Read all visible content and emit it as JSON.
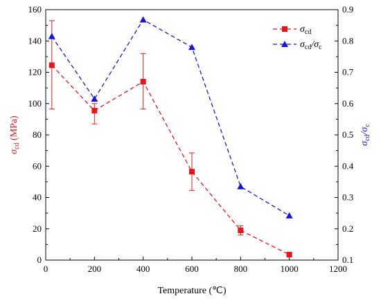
{
  "chart_data": {
    "type": "line",
    "x": [
      25,
      200,
      400,
      600,
      800,
      1000
    ],
    "xlabel": "Temperature (℃)",
    "xlim": [
      0,
      1200
    ],
    "xticks": [
      0,
      200,
      400,
      600,
      800,
      1000,
      1200
    ],
    "grid": false,
    "legend_position": "top-right",
    "left_axis": {
      "label_main": "σ",
      "label_sub": "cd",
      "label_unit": " (MPa)",
      "ylim": [
        0,
        160
      ],
      "ticks": [
        0,
        20,
        40,
        60,
        80,
        100,
        120,
        140,
        160
      ],
      "color": "#e8141c"
    },
    "right_axis": {
      "label_main": "σ",
      "label_sub": "cd",
      "label_sep": "/σ",
      "label_sub2": "c",
      "ylim": [
        0.1,
        0.9
      ],
      "ticks": [
        "0.1",
        "0.2",
        "0.3",
        "0.4",
        "0.5",
        "0.6",
        "0.7",
        "0.8",
        "0.9"
      ],
      "color": "#1515d6"
    },
    "series": [
      {
        "axis": "left",
        "legend_main": "σ",
        "legend_sub": "cd",
        "marker": "square",
        "line": "dashed",
        "color": "#e8141c",
        "values": [
          124.5,
          95.5,
          114,
          56.5,
          19,
          3.5
        ],
        "error_low": [
          96.5,
          87,
          96.5,
          44.5,
          16,
          3
        ],
        "error_high": [
          153,
          100,
          132,
          68.5,
          22,
          4
        ]
      },
      {
        "axis": "right",
        "legend_main": "σ",
        "legend_sub": "cd",
        "legend_sep": "/σ",
        "legend_sub2": "c",
        "marker": "triangle",
        "line": "dashed",
        "color": "#1515d6",
        "values": [
          0.815,
          0.615,
          0.868,
          0.78,
          0.335,
          0.242
        ]
      }
    ]
  }
}
